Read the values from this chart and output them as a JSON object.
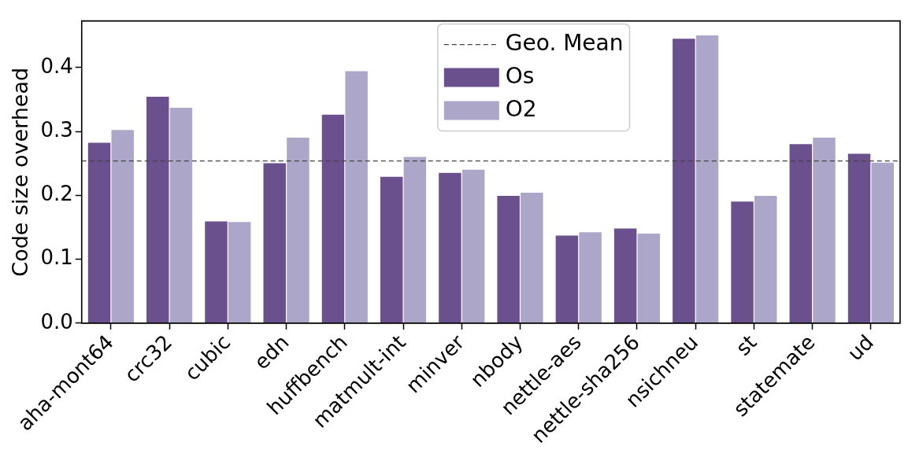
{
  "chart_data": {
    "type": "bar",
    "ylabel": "Code size overhead",
    "categories": [
      "aha-mont64",
      "crc32",
      "cubic",
      "edn",
      "huffbench",
      "matmult-int",
      "minver",
      "nbody",
      "nettle-aes",
      "nettle-sha256",
      "nsichneu",
      "st",
      "statemate",
      "ud"
    ],
    "series": [
      {
        "name": "Os",
        "color": "#6a518e",
        "values": [
          0.283,
          0.355,
          0.16,
          0.251,
          0.327,
          0.23,
          0.236,
          0.2,
          0.138,
          0.149,
          0.446,
          0.191,
          0.281,
          0.266
        ]
      },
      {
        "name": "O2",
        "color": "#aca7c9",
        "values": [
          0.303,
          0.338,
          0.159,
          0.291,
          0.395,
          0.261,
          0.241,
          0.205,
          0.143,
          0.141,
          0.451,
          0.2,
          0.291,
          0.252
        ]
      }
    ],
    "ylim": [
      0,
      0.473
    ],
    "yticks": [
      {
        "value": 0,
        "label": "0.0"
      },
      0.1,
      0.2,
      0.3,
      0.4
    ],
    "ref_lines": [
      {
        "axis": "y",
        "value": 0.254,
        "label": "Geo. Mean",
        "color": "#444444",
        "line_style": "dashed"
      }
    ],
    "grid": false,
    "legend": "top"
  }
}
